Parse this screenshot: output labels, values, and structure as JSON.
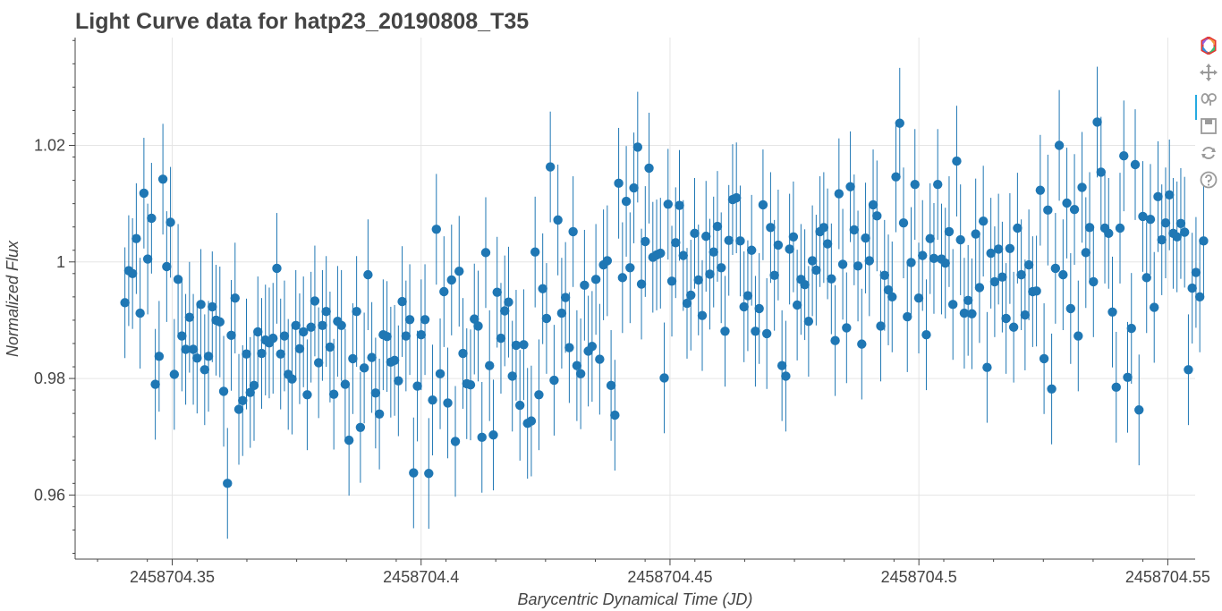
{
  "toolbar": {
    "tools": [
      {
        "name": "bokeh-logo-icon",
        "active": false
      },
      {
        "name": "pan-icon",
        "active": true
      },
      {
        "name": "wheel-zoom-icon",
        "active": false
      },
      {
        "name": "save-icon",
        "active": false
      },
      {
        "name": "reset-icon",
        "active": false
      },
      {
        "name": "help-icon",
        "active": false
      }
    ]
  },
  "colors": {
    "points": "#1f77b4",
    "errorbars": "#1f77b4",
    "grid": "#e5e5e5",
    "axis": "#444444"
  },
  "chart_data": {
    "type": "scatter",
    "title": "Light Curve data for hatp23_20190808_T35",
    "xlabel": "Barycentric Dynamical Time (JD)",
    "ylabel": "Normalized Flux",
    "xlim": [
      2458704.3305,
      2458704.5555
    ],
    "ylim": [
      0.949,
      1.0385
    ],
    "x_ticks": [
      2458704.35,
      2458704.4,
      2458704.45,
      2458704.5,
      2458704.55
    ],
    "x_tick_labels": [
      "2458704.35",
      "2458704.4",
      "2458704.45",
      "2458704.5",
      "2458704.55"
    ],
    "y_ticks": [
      0.96,
      0.98,
      1.0,
      1.02
    ],
    "y_tick_labels": [
      "0.96",
      "0.98",
      "1",
      "1.02"
    ],
    "grid": true,
    "error_bar": 0.0095,
    "x_start": 2458704.3405,
    "x_step": 0.000763,
    "y": [
      0.993,
      0.9985,
      0.998,
      1.004,
      0.9912,
      1.0118,
      1.0005,
      1.0075,
      0.979,
      0.9838,
      1.0142,
      0.9992,
      1.0068,
      0.9807,
      0.997,
      0.9873,
      0.985,
      0.9905,
      0.985,
      0.9835,
      0.9927,
      0.9815,
      0.9838,
      0.9923,
      0.99,
      0.9897,
      0.9778,
      0.962,
      0.9874,
      0.9938,
      0.9747,
      0.9762,
      0.9842,
      0.9776,
      0.9788,
      0.988,
      0.9843,
      0.9866,
      0.9861,
      0.9869,
      0.9989,
      0.9842,
      0.9873,
      0.9807,
      0.9799,
      0.9891,
      0.9851,
      0.988,
      0.9772,
      0.9888,
      0.9933,
      0.9827,
      0.9891,
      0.9915,
      0.9854,
      0.9773,
      0.9898,
      0.9891,
      0.979,
      0.9694,
      0.9834,
      0.9915,
      0.9716,
      0.9818,
      0.9978,
      0.9836,
      0.9775,
      0.9739,
      0.9875,
      0.9872,
      0.9828,
      0.9831,
      0.9796,
      0.9932,
      0.9873,
      0.9901,
      0.9638,
      0.9787,
      0.9875,
      0.9901,
      0.9637,
      0.9763,
      1.0056,
      0.9808,
      0.9949,
      0.9758,
      0.9969,
      0.9692,
      0.9984,
      0.9843,
      0.9791,
      0.9789,
      0.9902,
      0.989,
      0.9699,
      1.0016,
      0.9822,
      0.9703,
      0.9948,
      0.9869,
      0.9916,
      0.9931,
      0.9804,
      0.9857,
      0.9754,
      0.9858,
      0.9723,
      0.9727,
      1.0017,
      0.9772,
      0.9954,
      0.9903,
      1.0163,
      0.9797,
      1.0072,
      0.9912,
      0.9939,
      0.9853,
      1.0052,
      0.9822,
      0.9808,
      0.996,
      0.9847,
      0.9855,
      0.997,
      0.9833,
      0.9995,
      1.0002,
      0.9788,
      0.9737,
      1.0135,
      0.9973,
      1.0104,
      0.999,
      1.0127,
      1.0197,
      0.9962,
      1.0035,
      1.0161,
      1.0008,
      1.0012,
      1.0015,
      0.9801,
      1.0099,
      0.9967,
      1.0033,
      1.0097,
      1.0011,
      0.9929,
      0.9943,
      1.0049,
      0.9969,
      0.9908,
      1.0044,
      0.9979,
      1.0017,
      1.0061,
      0.999,
      0.9881,
      1.0037,
      1.0107,
      1.011,
      1.0036,
      0.9923,
      0.9942,
      1.002,
      0.9881,
      0.992,
      1.0098,
      0.9877,
      1.0059,
      0.9977,
      1.0029,
      0.9822,
      0.9804,
      1.0022,
      1.0043,
      0.9926,
      0.997,
      0.9961,
      0.9898,
      1.0002,
      0.9986,
      1.0052,
      1.0059,
      1.0031,
      0.9971,
      0.9865,
      1.0117,
      0.9996,
      0.9887,
      1.0129,
      1.0055,
      0.9993,
      0.9859,
      1.0041,
      1.0002,
      1.0098,
      1.0079,
      0.989,
      0.9977,
      0.9952,
      0.994,
      1.0146,
      1.0238,
      1.0067,
      0.9906,
      0.9999,
      1.0133,
      0.9938,
      1.0011,
      0.9875,
      1.004,
      1.0006,
      1.0133,
      1.0005,
      0.9998,
      1.0052,
      0.9927,
      1.0173,
      1.0038,
      0.9912,
      0.9934,
      0.9911,
      1.0048,
      0.9956,
      1.007,
      0.9819,
      1.0015,
      0.9966,
      1.0022,
      0.9974,
      0.9903,
      1.0023,
      0.9888,
      1.0058,
      0.9978,
      0.9909,
      0.9995,
      0.9949,
      0.995,
      1.0123,
      0.9834,
      1.0089,
      0.9782,
      0.9989,
      1.02,
      0.9978,
      1.0101,
      0.992,
      1.009,
      0.9873,
      1.0128,
      1.0016,
      1.0059,
      0.9966,
      1.024,
      1.0154,
      1.0058,
      1.0049,
      0.9914,
      0.9785,
      1.0058,
      1.0182,
      0.9802,
      0.9886,
      1.0167,
      0.9746,
      1.0078,
      0.9973,
      1.0073,
      0.9922,
      1.0112,
      1.0038,
      1.0067,
      1.0115,
      1.0049,
      1.0043,
      1.0066,
      1.0051,
      0.9815,
      0.9955,
      0.9982,
      0.994,
      1.0036
    ]
  }
}
